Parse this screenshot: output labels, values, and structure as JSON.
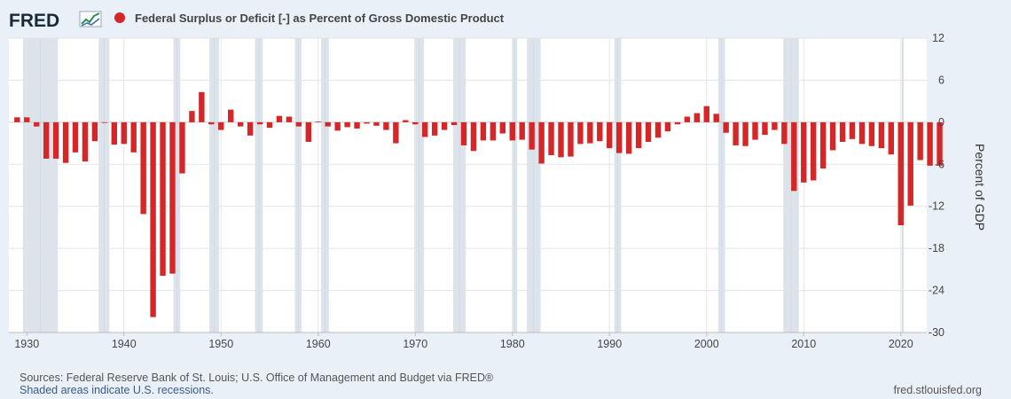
{
  "header": {
    "logo": "FRED",
    "series_title": "Federal Surplus or Deficit [-] as Percent of Gross Domestic Product",
    "series_color": "#d62728"
  },
  "footer": {
    "sources": "Sources: Federal Reserve Bank of St. Louis; U.S. Office of Management and Budget via FRED®",
    "shaded_note": "Shaded areas indicate U.S. recessions.",
    "site": "fred.stlouisfed.org"
  },
  "chart_data": {
    "type": "bar",
    "ylabel": "Percent of GDP",
    "ylim": [
      -30,
      12
    ],
    "yticks": [
      12,
      6,
      0,
      -6,
      -12,
      -18,
      -24,
      -30
    ],
    "xlim": [
      1929,
      2024
    ],
    "xticks": [
      1930,
      1940,
      1950,
      1960,
      1970,
      1980,
      1990,
      2000,
      2010,
      2020
    ],
    "grid": true,
    "bar_color": "#d62728",
    "recession_color": "#dde3ea",
    "recessions": [
      [
        1929.6,
        1933.2
      ],
      [
        1937.4,
        1938.5
      ],
      [
        1945.1,
        1945.8
      ],
      [
        1948.8,
        1949.8
      ],
      [
        1953.5,
        1954.3
      ],
      [
        1957.6,
        1958.3
      ],
      [
        1960.3,
        1961.1
      ],
      [
        1969.9,
        1970.9
      ],
      [
        1973.9,
        1975.2
      ],
      [
        1980.0,
        1980.5
      ],
      [
        1981.5,
        1982.9
      ],
      [
        1990.5,
        1991.2
      ],
      [
        2001.2,
        2001.9
      ],
      [
        2007.9,
        2009.5
      ],
      [
        2020.1,
        2020.3
      ]
    ],
    "x": [
      1929,
      1930,
      1931,
      1932,
      1933,
      1934,
      1935,
      1936,
      1937,
      1938,
      1939,
      1940,
      1941,
      1942,
      1943,
      1944,
      1945,
      1946,
      1947,
      1948,
      1949,
      1950,
      1951,
      1952,
      1953,
      1954,
      1955,
      1956,
      1957,
      1958,
      1959,
      1960,
      1961,
      1962,
      1963,
      1964,
      1965,
      1966,
      1967,
      1968,
      1969,
      1970,
      1971,
      1972,
      1973,
      1974,
      1975,
      1976,
      1977,
      1978,
      1979,
      1980,
      1981,
      1982,
      1983,
      1984,
      1985,
      1986,
      1987,
      1988,
      1989,
      1990,
      1991,
      1992,
      1993,
      1994,
      1995,
      1996,
      1997,
      1998,
      1999,
      2000,
      2001,
      2002,
      2003,
      2004,
      2005,
      2006,
      2007,
      2008,
      2009,
      2010,
      2011,
      2012,
      2013,
      2014,
      2015,
      2016,
      2017,
      2018,
      2019,
      2020,
      2021,
      2022,
      2023,
      2024
    ],
    "values": [
      0.7,
      0.7,
      -0.6,
      -5.2,
      -5.2,
      -5.8,
      -4.3,
      -5.6,
      -2.7,
      -0.1,
      -3.2,
      -3.1,
      -4.3,
      -13.1,
      -27.8,
      -21.9,
      -21.6,
      -7.3,
      1.6,
      4.3,
      -0.3,
      -1.1,
      1.8,
      -0.6,
      -1.9,
      -0.3,
      -0.8,
      0.9,
      0.8,
      -0.6,
      -2.8,
      0.1,
      -0.6,
      -1.2,
      -0.7,
      -0.9,
      -0.2,
      -0.5,
      -1.1,
      -3.0,
      0.3,
      -0.3,
      -2.1,
      -1.9,
      -1.1,
      -0.4,
      -3.3,
      -4.1,
      -2.6,
      -2.6,
      -1.6,
      -2.6,
      -2.5,
      -3.9,
      -5.9,
      -4.7,
      -5.0,
      -4.9,
      -3.1,
      -3.0,
      -2.7,
      -3.7,
      -4.4,
      -4.5,
      -3.7,
      -2.8,
      -2.2,
      -1.3,
      -0.3,
      0.8,
      1.3,
      2.3,
      1.2,
      -1.5,
      -3.3,
      -3.4,
      -2.5,
      -1.8,
      -1.1,
      -3.1,
      -9.8,
      -8.6,
      -8.3,
      -6.6,
      -4.0,
      -2.8,
      -2.4,
      -3.1,
      -3.4,
      -3.7,
      -4.6,
      -14.7,
      -11.9,
      -5.4,
      -6.2,
      -6.2
    ]
  }
}
